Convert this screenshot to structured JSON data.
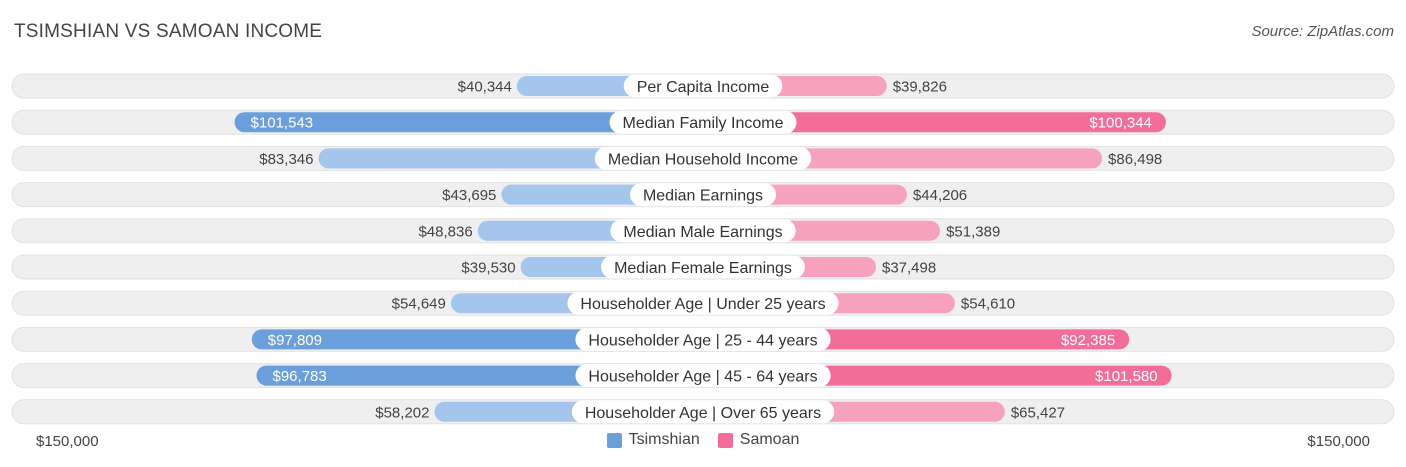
{
  "header": {
    "title": "TSIMSHIAN VS SAMOAN INCOME",
    "source": "Source: ZipAtlas.com"
  },
  "colors": {
    "left_dark": "#6a9fdc",
    "left_light": "#a4c5ec",
    "right_dark": "#f26e98",
    "right_light": "#f6a2bd",
    "row_bg": "#efefef"
  },
  "legend": {
    "left": "Tsimshian",
    "right": "Samoan"
  },
  "axis": {
    "left_label": "$150,000",
    "right_label": "$150,000"
  },
  "chart_data": {
    "type": "bar",
    "orientation": "diverging-horizontal",
    "title": "TSIMSHIAN VS SAMOAN INCOME",
    "xlim": [
      -150000,
      150000
    ],
    "categories": [
      "Per Capita Income",
      "Median Family Income",
      "Median Household Income",
      "Median Earnings",
      "Median Male Earnings",
      "Median Female Earnings",
      "Householder Age | Under 25 years",
      "Householder Age | 25 - 44 years",
      "Householder Age | 45 - 64 years",
      "Householder Age | Over 65 years"
    ],
    "series": [
      {
        "name": "Tsimshian",
        "values": [
          40344,
          101543,
          83346,
          43695,
          48836,
          39530,
          54649,
          97809,
          96783,
          58202
        ],
        "labels": [
          "$40,344",
          "$101,543",
          "$83,346",
          "$43,695",
          "$48,836",
          "$39,530",
          "$54,649",
          "$97,809",
          "$96,783",
          "$58,202"
        ]
      },
      {
        "name": "Samoan",
        "values": [
          39826,
          100344,
          86498,
          44206,
          51389,
          37498,
          54610,
          92385,
          101580,
          65427
        ],
        "labels": [
          "$39,826",
          "$100,344",
          "$86,498",
          "$44,206",
          "$51,389",
          "$37,498",
          "$54,610",
          "$92,385",
          "$101,580",
          "$65,427"
        ]
      }
    ]
  }
}
